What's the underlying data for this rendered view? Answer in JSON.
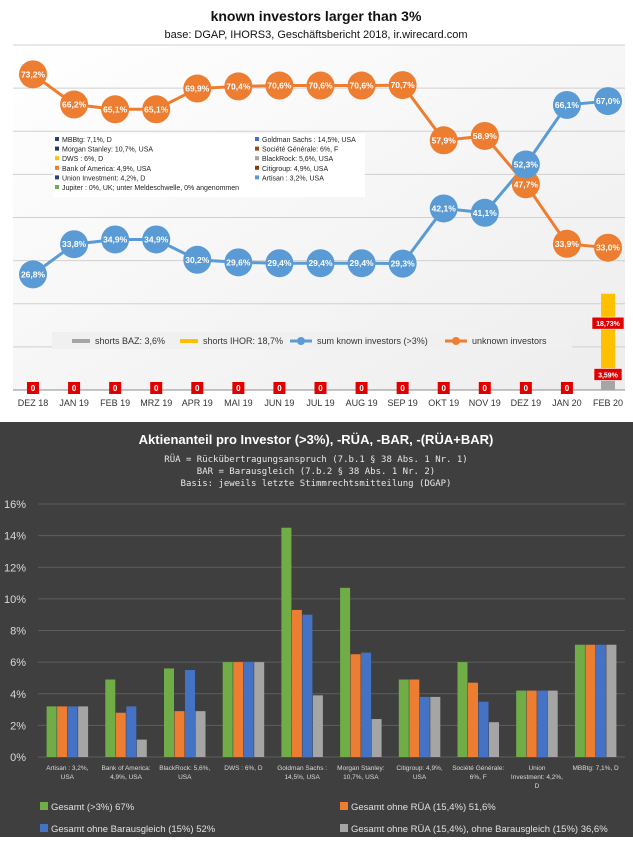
{
  "chart_data": [
    {
      "type": "line",
      "title": "known investors larger than 3%",
      "subtitle": "base: DGAP, IHORS3, Geschäftsbericht 2018, ir.wirecard.com",
      "categories": [
        "DEZ 18",
        "JAN 19",
        "FEB 19",
        "MRZ 19",
        "APR 19",
        "MAI 19",
        "JUN 19",
        "JUL 19",
        "AUG 19",
        "SEP 19",
        "OKT 19",
        "NOV 19",
        "DEZ 19",
        "JAN 20",
        "FEB 20"
      ],
      "ylim": [
        0,
        80
      ],
      "series": [
        {
          "name": "unknown investors",
          "color": "#ed7d31",
          "kind": "line",
          "values": [
            73.2,
            66.2,
            65.1,
            65.1,
            69.9,
            70.4,
            70.6,
            70.6,
            70.6,
            70.7,
            57.9,
            58.9,
            47.7,
            33.9,
            33.0
          ],
          "labels": [
            "73,2%",
            "66,2%",
            "65,1%",
            "65,1%",
            "69,9%",
            "70,4%",
            "70,6%",
            "70,6%",
            "70,6%",
            "70,7%",
            "57,9%",
            "58,9%",
            "47,7%",
            "33,9%",
            "33,0%"
          ]
        },
        {
          "name": "sum known investors (>3%)",
          "color": "#5b9bd5",
          "kind": "line",
          "values": [
            26.8,
            33.8,
            34.9,
            34.9,
            30.2,
            29.6,
            29.4,
            29.4,
            29.4,
            29.3,
            42.1,
            41.1,
            52.3,
            66.1,
            67.0
          ],
          "labels": [
            "26,8%",
            "33,8%",
            "34,9%",
            "34,9%",
            "30,2%",
            "29,6%",
            "29,4%",
            "29,4%",
            "29,4%",
            "29,3%",
            "42,1%",
            "41,1%",
            "52,3%",
            "66,1%",
            "67,0%"
          ]
        },
        {
          "name": "shorts BAZ: 3,6%",
          "color": "#a5a5a5",
          "kind": "bar",
          "values": [
            0,
            0,
            0,
            0,
            0,
            0,
            0,
            0,
            0,
            0,
            0,
            0,
            0,
            0,
            3.59
          ],
          "labels": [
            "0",
            "0",
            "0",
            "0",
            "0",
            "0",
            "0",
            "0",
            "0",
            "0",
            "0",
            "0",
            "0",
            "0",
            "3,59%"
          ]
        },
        {
          "name": "shorts IHOR: 18,7%",
          "color": "#ffc000",
          "kind": "bar",
          "values": [
            0,
            0,
            0,
            0,
            0,
            0,
            0,
            0,
            0,
            0,
            0,
            0,
            0,
            0,
            18.73
          ],
          "labels": [
            "",
            "",
            "",
            "",
            "",
            "",
            "",
            "",
            "",
            "",
            "",
            "",
            "",
            "",
            "18,73%"
          ]
        }
      ],
      "legend_items": [
        {
          "label": "MBBtg: 7,1%, D",
          "color": "#264478"
        },
        {
          "label": "Goldman Sachs : 14,5%, USA",
          "color": "#4472c4"
        },
        {
          "label": "Morgan Stanley: 10,7%, USA",
          "color": "#1f3864"
        },
        {
          "label": "Société Générale: 6%, F",
          "color": "#9e480e"
        },
        {
          "label": "DWS : 6%, D",
          "color": "#ffc000"
        },
        {
          "label": "BlackRock: 5,6%, USA",
          "color": "#a5a5a5"
        },
        {
          "label": "Bank of America: 4,9%, USA",
          "color": "#ed7d31"
        },
        {
          "label": "Citigroup: 4,9%, USA",
          "color": "#843c0c"
        },
        {
          "label": "Union Investment: 4,2%, D",
          "color": "#264478"
        },
        {
          "label": "Artisan : 3,2%, USA",
          "color": "#5b9bd5"
        },
        {
          "label": "Jupiter : 0%, UK; unter Meldeschwelle, 0% angenommen",
          "color": "#70ad47"
        }
      ]
    },
    {
      "type": "bar",
      "title": "Aktienanteil pro Investor (>3%), -RÜA, -BAR, -(RÜA+BAR)",
      "subtitle_lines": [
        "RÜA = Rückübertragungsanspruch (7.b.1 § 38 Abs. 1 Nr. 1)",
        "BAR = Barausgleich (7.b.2 § 38 Abs. 1 Nr. 2)",
        "Basis: jeweils letzte Stimmrechtsmitteilung (DGAP)"
      ],
      "categories": [
        [
          "Artisan : 3,2%,",
          "USA"
        ],
        [
          "Bank of America:",
          "4,9%, USA"
        ],
        [
          "BlackRock: 5,6%,",
          "USA"
        ],
        [
          "DWS : 6%, D"
        ],
        [
          "Goldman Sachs :",
          "14,5%, USA"
        ],
        [
          "Morgan Stanley:",
          "10,7%, USA"
        ],
        [
          "Citigroup: 4,9%,",
          "USA"
        ],
        [
          "Société Générale:",
          "6%, F"
        ],
        [
          "Union",
          "Investment: 4,2%,",
          "D"
        ],
        [
          "MBBtg: 7,1%, D"
        ]
      ],
      "ylim": [
        0,
        16
      ],
      "yticks": [
        "0%",
        "2%",
        "4%",
        "6%",
        "8%",
        "10%",
        "12%",
        "14%",
        "16%"
      ],
      "series": [
        {
          "name": "Gesamt (>3%) 67%",
          "color": "#70ad47",
          "values": [
            3.2,
            4.9,
            5.6,
            6.0,
            14.5,
            10.7,
            4.9,
            6.0,
            4.2,
            7.1
          ]
        },
        {
          "name": "Gesamt ohne RÜA (15,4%) 51,6%",
          "color": "#ed7d31",
          "values": [
            3.2,
            2.8,
            2.9,
            6.0,
            9.3,
            6.5,
            4.9,
            4.7,
            4.2,
            7.1
          ]
        },
        {
          "name": "Gesamt ohne Barausgleich (15%) 52%",
          "color": "#4472c4",
          "values": [
            3.2,
            3.2,
            5.5,
            6.0,
            9.0,
            6.6,
            3.8,
            3.5,
            4.2,
            7.1
          ]
        },
        {
          "name": "Gesamt ohne RÜA (15,4%), ohne Barausgleich (15%) 36,6%",
          "color": "#a5a5a5",
          "values": [
            3.2,
            1.1,
            2.9,
            6.0,
            3.9,
            2.4,
            3.8,
            2.2,
            4.2,
            7.1
          ]
        }
      ]
    }
  ]
}
